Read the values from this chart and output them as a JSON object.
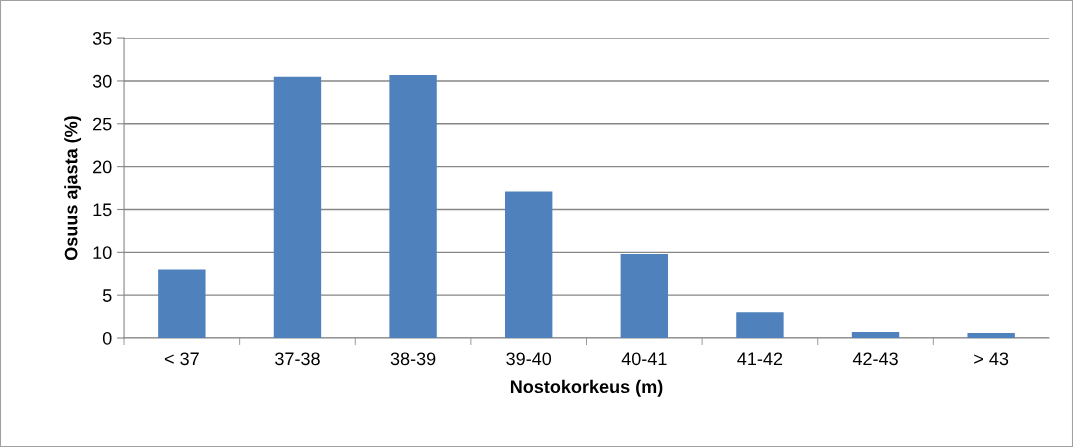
{
  "chart_data": {
    "type": "bar",
    "xlabel": "Nostokorkeus (m)",
    "ylabel": "Osuus ajasta (%)",
    "categories": [
      "< 37",
      "37-38",
      "38-39",
      "39-40",
      "40-41",
      "41-42",
      "42-43",
      "> 43"
    ],
    "values": [
      8.0,
      30.5,
      30.7,
      17.1,
      9.8,
      3.0,
      0.7,
      0.6
    ],
    "color": "#4f81bd",
    "ylim": [
      0,
      35
    ],
    "yticks": [
      0,
      5,
      10,
      15,
      20,
      25,
      30,
      35
    ],
    "grid": "y"
  }
}
